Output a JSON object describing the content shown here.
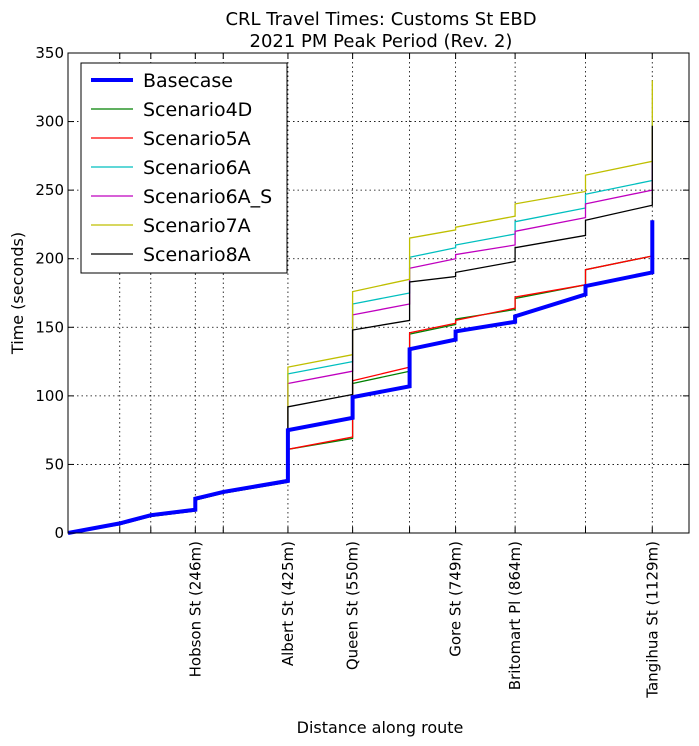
{
  "chart_data": {
    "type": "line",
    "title": [
      "CRL Travel Times: Customs St EBD",
      "2021 PM Peak Period (Rev. 2)"
    ],
    "xlabel": "Distance along route",
    "ylabel": "Time (seconds)",
    "xlim": [
      0,
      1200
    ],
    "ylim": [
      0,
      350
    ],
    "yticks": [
      0,
      50,
      100,
      150,
      200,
      250,
      300,
      350
    ],
    "xgrid": [
      100,
      160,
      246,
      300,
      425,
      550,
      660,
      749,
      864,
      1000,
      1129
    ],
    "xtick_labels": [
      {
        "x": 246,
        "label": "Hobson St (246m)"
      },
      {
        "x": 425,
        "label": "Albert St (425m)"
      },
      {
        "x": 550,
        "label": "Queen St (550m)"
      },
      {
        "x": 749,
        "label": "Gore St (749m)"
      },
      {
        "x": 864,
        "label": "Britomart Pl (864m)"
      },
      {
        "x": 1129,
        "label": "Tangihua St (1129m)"
      }
    ],
    "legend_position": "top-left",
    "series": [
      {
        "name": "Basecase",
        "color": "#0000ff",
        "width": 4,
        "points": [
          [
            0,
            0
          ],
          [
            100,
            7
          ],
          [
            160,
            13
          ],
          [
            246,
            17
          ],
          [
            246,
            25
          ],
          [
            300,
            30
          ],
          [
            425,
            38
          ],
          [
            425,
            75
          ],
          [
            550,
            84
          ],
          [
            550,
            99
          ],
          [
            660,
            107
          ],
          [
            660,
            134
          ],
          [
            749,
            141
          ],
          [
            749,
            147
          ],
          [
            864,
            154
          ],
          [
            864,
            158
          ],
          [
            1000,
            174
          ],
          [
            1000,
            180
          ],
          [
            1129,
            190
          ],
          [
            1129,
            228
          ]
        ]
      },
      {
        "name": "Scenario4D",
        "color": "#008000",
        "width": 1.3,
        "points": [
          [
            0,
            0
          ],
          [
            100,
            7
          ],
          [
            160,
            13
          ],
          [
            246,
            17
          ],
          [
            246,
            25
          ],
          [
            300,
            30
          ],
          [
            425,
            38
          ],
          [
            425,
            61
          ],
          [
            550,
            69
          ],
          [
            550,
            109
          ],
          [
            660,
            118
          ],
          [
            660,
            145
          ],
          [
            749,
            152
          ],
          [
            749,
            156
          ],
          [
            864,
            163
          ],
          [
            864,
            171
          ],
          [
            1000,
            181
          ],
          [
            1000,
            192
          ],
          [
            1129,
            202
          ],
          [
            1129,
            215
          ]
        ]
      },
      {
        "name": "Scenario5A",
        "color": "#ff0000",
        "width": 1.3,
        "points": [
          [
            0,
            0
          ],
          [
            100,
            7
          ],
          [
            160,
            13
          ],
          [
            246,
            17
          ],
          [
            246,
            26
          ],
          [
            300,
            30
          ],
          [
            425,
            39
          ],
          [
            425,
            61
          ],
          [
            550,
            70
          ],
          [
            550,
            111
          ],
          [
            660,
            121
          ],
          [
            660,
            146
          ],
          [
            749,
            153
          ],
          [
            749,
            155
          ],
          [
            864,
            164
          ],
          [
            864,
            172
          ],
          [
            1000,
            181
          ],
          [
            1000,
            192
          ],
          [
            1129,
            202
          ],
          [
            1129,
            215
          ]
        ]
      },
      {
        "name": "Scenario6A",
        "color": "#00bfbf",
        "width": 1.3,
        "points": [
          [
            0,
            0
          ],
          [
            100,
            7
          ],
          [
            160,
            13
          ],
          [
            246,
            17
          ],
          [
            246,
            25
          ],
          [
            300,
            30
          ],
          [
            425,
            38
          ],
          [
            425,
            116
          ],
          [
            550,
            125
          ],
          [
            550,
            167
          ],
          [
            660,
            175
          ],
          [
            660,
            201
          ],
          [
            749,
            208
          ],
          [
            749,
            210
          ],
          [
            864,
            218
          ],
          [
            864,
            227
          ],
          [
            1000,
            237
          ],
          [
            1000,
            247
          ],
          [
            1129,
            257
          ],
          [
            1129,
            300
          ]
        ]
      },
      {
        "name": "Scenario6A_S",
        "color": "#bf00bf",
        "width": 1.3,
        "points": [
          [
            0,
            0
          ],
          [
            100,
            7
          ],
          [
            160,
            13
          ],
          [
            246,
            17
          ],
          [
            246,
            25
          ],
          [
            300,
            30
          ],
          [
            425,
            38
          ],
          [
            425,
            109
          ],
          [
            550,
            118
          ],
          [
            550,
            159
          ],
          [
            660,
            167
          ],
          [
            660,
            193
          ],
          [
            749,
            200
          ],
          [
            749,
            203
          ],
          [
            864,
            210
          ],
          [
            864,
            220
          ],
          [
            1000,
            230
          ],
          [
            1000,
            240
          ],
          [
            1129,
            250
          ],
          [
            1129,
            292
          ]
        ]
      },
      {
        "name": "Scenario7A",
        "color": "#bfbf00",
        "width": 1.3,
        "points": [
          [
            0,
            0
          ],
          [
            100,
            7
          ],
          [
            160,
            13
          ],
          [
            246,
            17
          ],
          [
            246,
            25
          ],
          [
            300,
            30
          ],
          [
            425,
            38
          ],
          [
            425,
            121
          ],
          [
            550,
            130
          ],
          [
            550,
            176
          ],
          [
            660,
            185
          ],
          [
            660,
            215
          ],
          [
            749,
            221
          ],
          [
            749,
            223
          ],
          [
            864,
            231
          ],
          [
            864,
            240
          ],
          [
            1000,
            249
          ],
          [
            1000,
            261
          ],
          [
            1129,
            271
          ],
          [
            1129,
            330
          ]
        ]
      },
      {
        "name": "Scenario8A",
        "color": "#000000",
        "width": 1.3,
        "points": [
          [
            0,
            0
          ],
          [
            100,
            6
          ],
          [
            160,
            12
          ],
          [
            246,
            16
          ],
          [
            246,
            24
          ],
          [
            300,
            29
          ],
          [
            425,
            37
          ],
          [
            425,
            92
          ],
          [
            550,
            101
          ],
          [
            550,
            148
          ],
          [
            660,
            155
          ],
          [
            660,
            183
          ],
          [
            749,
            187
          ],
          [
            749,
            190
          ],
          [
            864,
            198
          ],
          [
            864,
            208
          ],
          [
            1000,
            217
          ],
          [
            1000,
            228
          ],
          [
            1129,
            239
          ],
          [
            1129,
            297
          ]
        ]
      }
    ]
  }
}
